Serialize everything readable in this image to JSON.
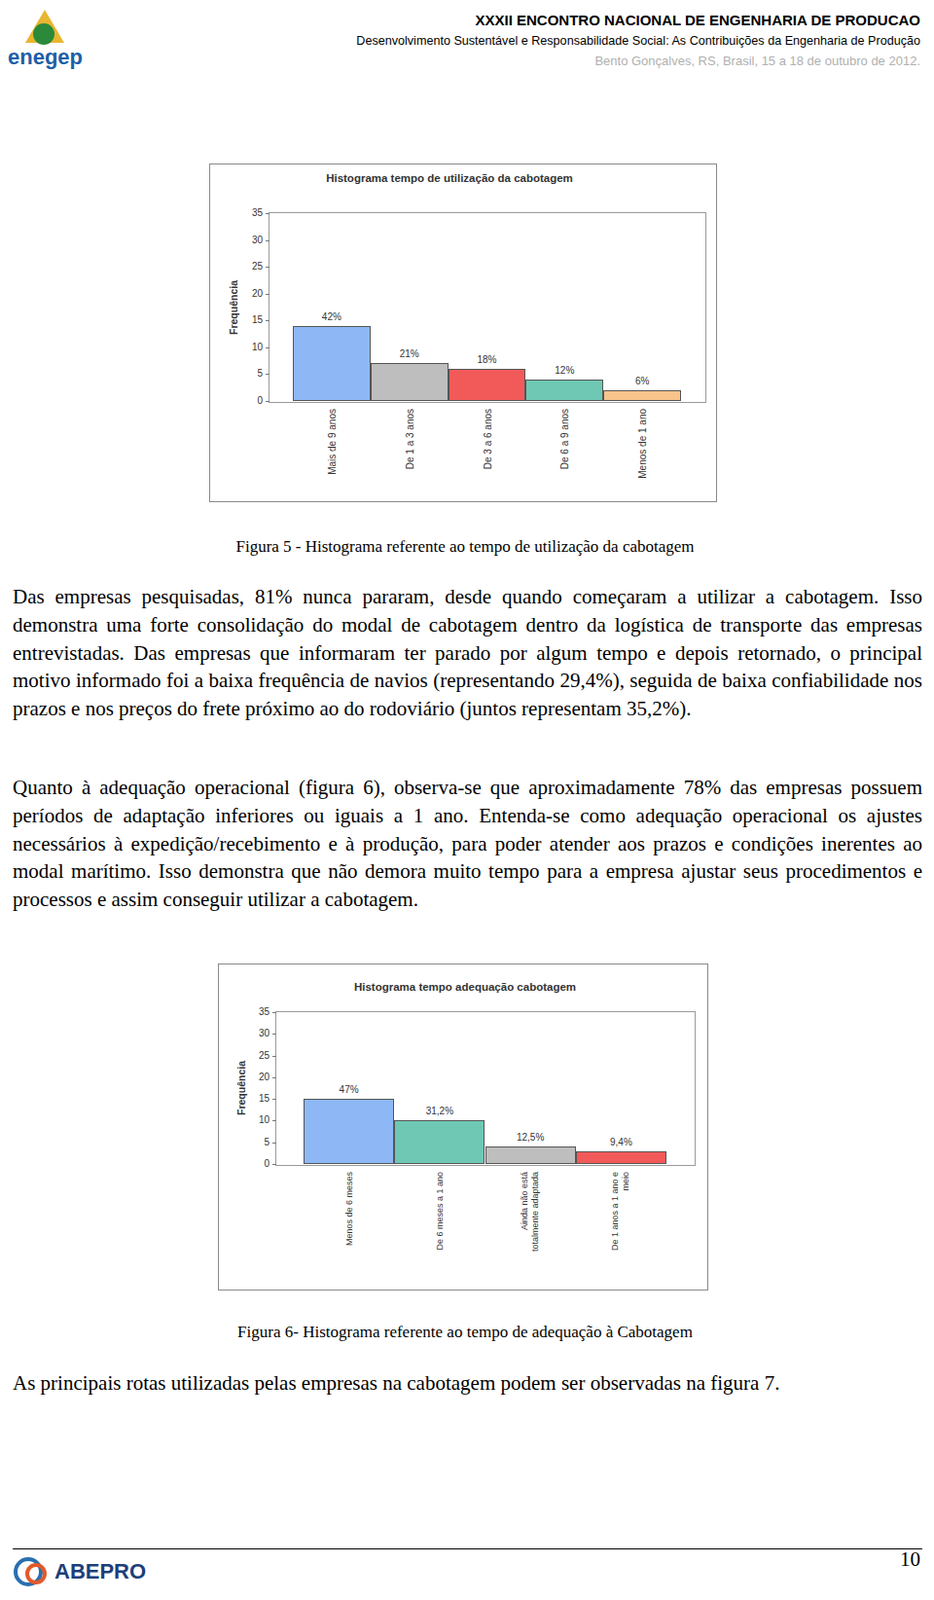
{
  "header": {
    "logo_text": "enegep",
    "title": "XXXII ENCONTRO NACIONAL DE ENGENHARIA DE PRODUCAO",
    "subtitle": "Desenvolvimento Sustentável e Responsabilidade Social: As Contribuições da Engenharia de Produção",
    "place_date": "Bento Gonçalves, RS, Brasil, 15 a 18 de outubro de 2012."
  },
  "chart_data": [
    {
      "type": "bar",
      "title": "Histograma tempo de utilização da cabotagem",
      "y_label": "Frequência",
      "categories": [
        "Mais de 9 anos",
        "De 1 a 3 anos",
        "De 3 a 6 anos",
        "De 6 a 9 anos",
        "Menos de 1 ano"
      ],
      "values": [
        14,
        7,
        6,
        4,
        2
      ],
      "percent_labels": [
        "42%",
        "21%",
        "18%",
        "12%",
        "6%"
      ],
      "colors": [
        "#8db8f5",
        "#bebebe",
        "#f25a5a",
        "#6ec8b4",
        "#f8c48c"
      ],
      "ylim": [
        0,
        35
      ],
      "yticks": [
        0,
        5,
        10,
        15,
        20,
        25,
        30,
        35
      ],
      "grid": false
    },
    {
      "type": "bar",
      "title": "Histograma tempo adequação cabotagem",
      "y_label": "Frequência",
      "categories": [
        "Menos de 6 meses",
        "De 6 meses a 1 ano",
        "Ainda não está totalmente adaptada",
        "De 1 anos a 1 ano e meio"
      ],
      "values": [
        15,
        10,
        4,
        3
      ],
      "percent_labels": [
        "47%",
        "31,2%",
        "12,5%",
        "9,4%"
      ],
      "colors": [
        "#8db8f5",
        "#6ec8b4",
        "#bebebe",
        "#f25a5a"
      ],
      "ylim": [
        0,
        35
      ],
      "yticks": [
        0,
        5,
        10,
        15,
        20,
        25,
        30,
        35
      ],
      "grid": false
    }
  ],
  "captions": [
    "Figura 5 - Histograma referente ao tempo de utilização da cabotagem",
    "Figura 6- Histograma referente ao tempo de adequação à Cabotagem"
  ],
  "paragraphs": [
    "Das empresas pesquisadas, 81% nunca pararam, desde quando começaram a utilizar a cabotagem. Isso demonstra uma forte consolidação do modal de cabotagem dentro da logística de transporte das empresas entrevistadas. Das empresas que informaram ter parado por algum tempo e depois retornado, o principal motivo informado foi a baixa frequência de navios (representando 29,4%), seguida de baixa confiabilidade nos prazos e nos preços do frete próximo ao do rodoviário (juntos representam 35,2%).",
    "Quanto à adequação operacional (figura 6), observa-se que aproximadamente 78% das empresas possuem períodos de adaptação inferiores ou iguais a 1 ano. Entenda-se como adequação operacional os ajustes necessários à expedição/recebimento e à produção, para poder atender aos prazos e condições inerentes ao modal marítimo. Isso demonstra que não demora muito tempo para a empresa ajustar seus procedimentos e processos e assim conseguir utilizar a cabotagem.",
    "As principais rotas utilizadas pelas empresas na cabotagem podem ser observadas na figura 7."
  ],
  "footer": {
    "logo_text": "ABEPRO",
    "page_number": "10"
  }
}
